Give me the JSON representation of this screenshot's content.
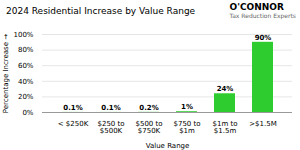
{
  "chart_data": {
    "type": "bar",
    "title": "2024 Residential Increase by Value Range",
    "x_label": "Value Range",
    "y_label": "Percentage Increase",
    "categories": [
      "< $250K",
      "$250 to\n$500K",
      "$500 to\n$750K",
      "$750 to\n$1m",
      "$1m to\n$1.5m",
      ">$1.5M"
    ],
    "values": [
      0.1,
      0.1,
      0.2,
      1.0,
      24.0,
      90.0
    ],
    "value_labels": [
      "0.1%",
      "0.1%",
      "0.2%",
      "1%",
      "24%",
      "90%"
    ],
    "data_labels": true,
    "color": "#2ecc2e",
    "ylim": [
      0,
      100
    ],
    "yticks": [
      {
        "value": 0,
        "label": "0%"
      },
      {
        "value": 20,
        "label": "20%"
      },
      {
        "value": 40,
        "label": "40%"
      },
      {
        "value": 60,
        "label": "60%"
      },
      {
        "value": 80,
        "label": "80%"
      },
      {
        "value": 100,
        "label": "100%"
      }
    ],
    "grid": true,
    "annotations": [
      "O'CONNOR",
      "Tax Reduction Experts"
    ]
  }
}
